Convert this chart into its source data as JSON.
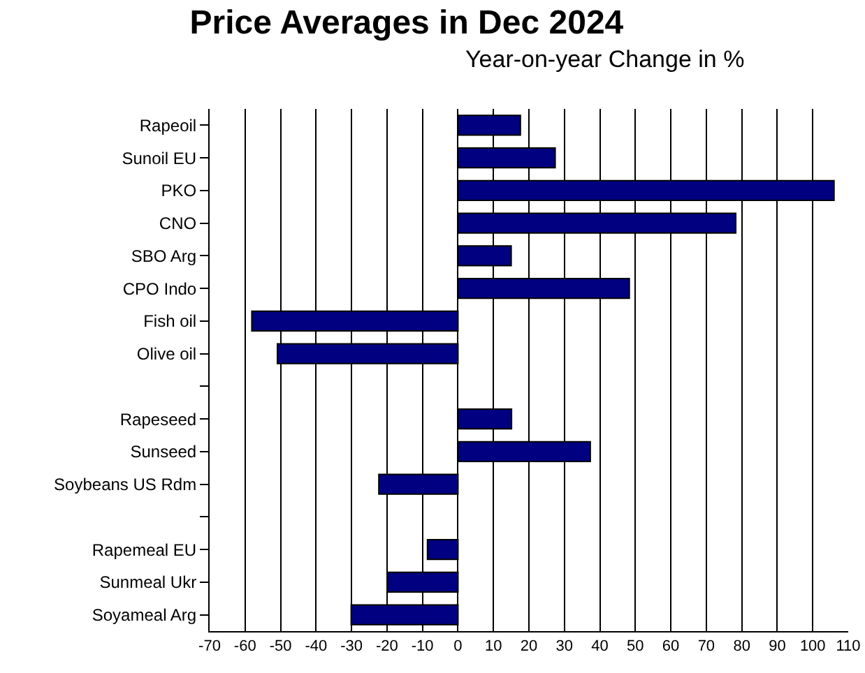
{
  "chart_data": {
    "type": "bar",
    "orientation": "horizontal",
    "title": "Price Averages in Dec 2024",
    "subtitle": "Year-on-year Change in %",
    "categories": [
      "Rapeoil",
      "Sunoil EU",
      "PKO",
      "CNO",
      "SBO Arg",
      "CPO Indo",
      "Fish oil",
      "Olive oil",
      null,
      "Rapeseed",
      "Sunseed",
      "Soybeans US Rdm",
      null,
      "Rapemeal EU",
      "Sunmeal Ukr",
      "Soyameal Arg"
    ],
    "values": [
      17.6,
      27.4,
      106,
      78.3,
      15,
      48.3,
      -58.1,
      -50.9,
      null,
      15.1,
      37.3,
      -22.3,
      null,
      -8.6,
      -19.9,
      -30.1
    ],
    "color": "#000080",
    "xlim": [
      -70,
      110
    ],
    "xticks": [
      -70,
      -60,
      -50,
      -40,
      -30,
      -20,
      -10,
      0,
      10,
      20,
      30,
      40,
      50,
      60,
      70,
      80,
      90,
      100,
      110
    ],
    "grid": "x"
  }
}
